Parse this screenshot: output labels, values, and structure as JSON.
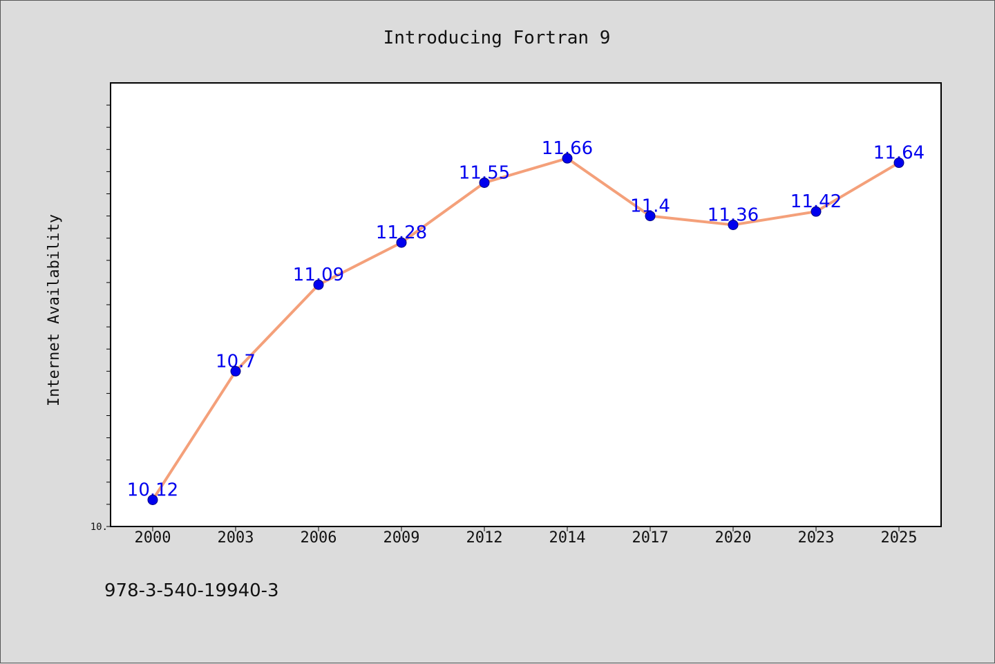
{
  "chart_data": {
    "type": "line",
    "title": "Introducing Fortran 9",
    "xlabel": "",
    "ylabel": "Internet Availability",
    "categories": [
      "2000",
      "2003",
      "2006",
      "2009",
      "2012",
      "2014",
      "2017",
      "2020",
      "2023",
      "2025"
    ],
    "series": [
      {
        "values": [
          10.12,
          10.7,
          11.09,
          11.28,
          11.55,
          11.66,
          11.4,
          11.36,
          11.42,
          11.64
        ],
        "labels": [
          "10.12",
          "10.7",
          "11.09",
          "11.28",
          "11.55",
          "11.66",
          "11.4",
          "11.36",
          "11.42",
          "11.64"
        ],
        "line_color": "#f4a07a",
        "marker_color": "#0000ee",
        "label_color": "#0000ee"
      }
    ],
    "ylim": [
      10.0,
      12.0
    ],
    "y_tick_label": "10.",
    "grid": false,
    "legend": "none",
    "footnote": "978-3-540-19940-3"
  }
}
